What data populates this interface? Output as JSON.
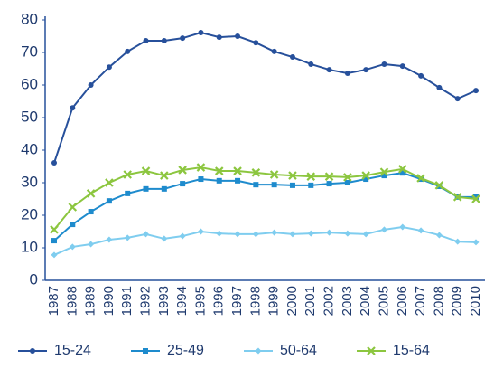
{
  "chart_data": {
    "type": "line",
    "categories": [
      "1987",
      "1988",
      "1989",
      "1990",
      "1991",
      "1992",
      "1993",
      "1994",
      "1995",
      "1996",
      "1997",
      "1998",
      "1999",
      "2000",
      "2001",
      "2002",
      "2003",
      "2004",
      "2005",
      "2006",
      "2007",
      "2008",
      "2009",
      "2010"
    ],
    "series": [
      {
        "name": "15-24",
        "color": "#27509b",
        "marker": "circle",
        "values": [
          36.1,
          53,
          60,
          65.5,
          70.3,
          73.6,
          73.6,
          74.4,
          76.1,
          74.7,
          75,
          73,
          70.3,
          68.6,
          66.4,
          64.7,
          63.6,
          64.7,
          66.4,
          65.8,
          62.8,
          59.2,
          55.8,
          58.3
        ]
      },
      {
        "name": "25-49",
        "color": "#1e8bcd",
        "marker": "square",
        "values": [
          12.2,
          17.2,
          21.1,
          24.4,
          26.7,
          28.1,
          28.1,
          29.7,
          31.1,
          30.6,
          30.6,
          29.4,
          29.4,
          29.2,
          29.2,
          29.7,
          30,
          31.1,
          32.2,
          33,
          31.1,
          28.9,
          25.6,
          25.6
        ]
      },
      {
        "name": "50-64",
        "color": "#7fcdef",
        "marker": "diamond",
        "values": [
          7.8,
          10.3,
          11.1,
          12.5,
          13.1,
          14.2,
          12.8,
          13.6,
          15,
          14.4,
          14.2,
          14.2,
          14.7,
          14.2,
          14.4,
          14.7,
          14.4,
          14.2,
          15.6,
          16.4,
          15.3,
          13.9,
          11.9,
          11.7
        ]
      },
      {
        "name": "15-64",
        "color": "#8cc63f",
        "marker": "x",
        "values": [
          15.6,
          22.5,
          26.7,
          30,
          32.5,
          33.6,
          32.2,
          33.9,
          34.7,
          33.6,
          33.6,
          33.1,
          32.5,
          32.2,
          31.9,
          31.9,
          31.7,
          32.2,
          33.3,
          34.2,
          31.4,
          29.2,
          25.6,
          25
        ]
      }
    ],
    "ylim": [
      0,
      80
    ],
    "yticks": [
      0,
      10,
      20,
      30,
      40,
      50,
      60,
      70,
      80
    ],
    "grid": false,
    "legend": "bottom"
  }
}
